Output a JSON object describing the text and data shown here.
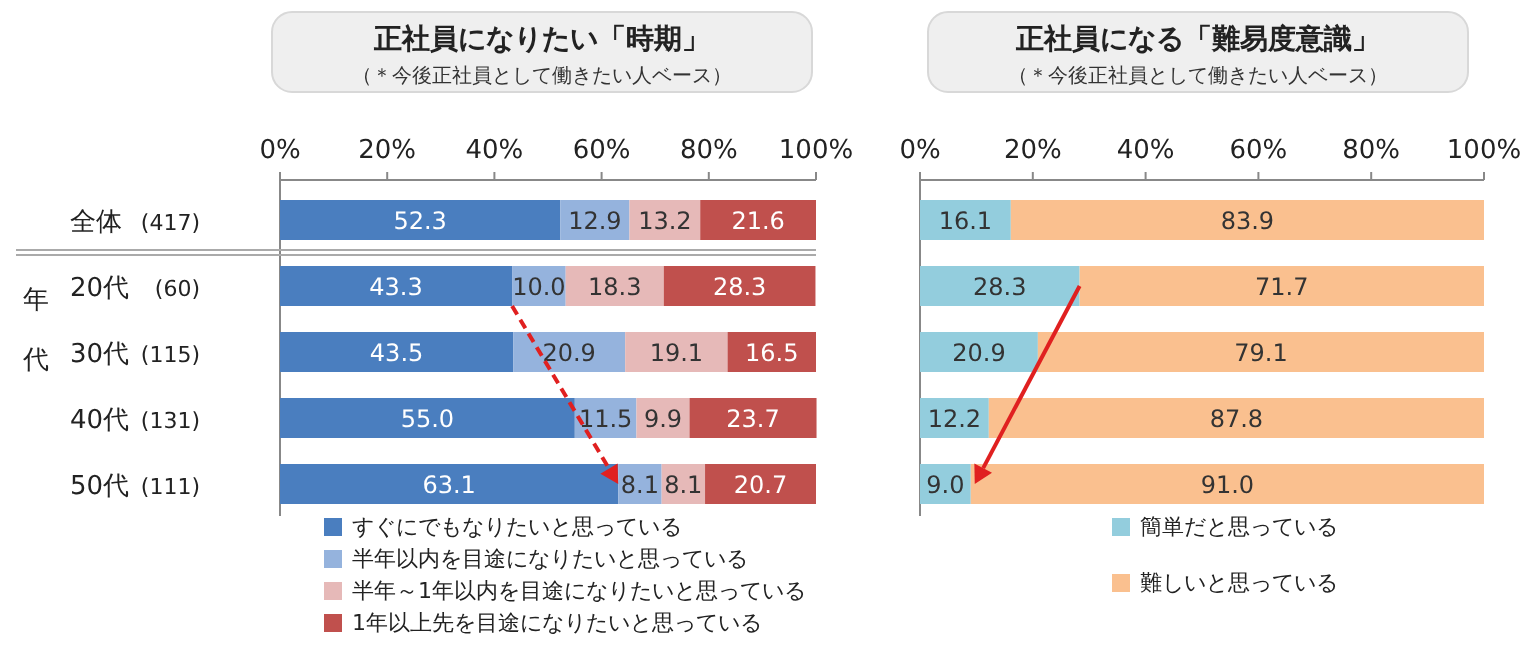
{
  "chart_data": [
    {
      "type": "bar",
      "orientation": "horizontal",
      "stacked": true,
      "title": "正社員になりたい「時期」",
      "subtitle": "（＊今後正社員として働きたい人ベース）",
      "categories": [
        "全体",
        "20代",
        "30代",
        "40代",
        "50代"
      ],
      "series": [
        {
          "name": "すぐにでもなりたいと思っている",
          "color": "#4a7ebf",
          "values": [
            52.3,
            43.3,
            43.5,
            55.0,
            63.1
          ],
          "value_labels": [
            "52.3",
            "43.3",
            "43.5",
            "55.0",
            "63.1"
          ]
        },
        {
          "name": "半年以内を目途になりたいと思っている",
          "color": "#95b3dd",
          "values": [
            12.9,
            10.0,
            20.9,
            11.5,
            8.1
          ],
          "value_labels": [
            "12.9",
            "10.0",
            "20.9",
            "11.5",
            "8.1"
          ]
        },
        {
          "name": "半年～1年以内を目途になりたいと思っている",
          "color": "#e6b9b8",
          "values": [
            13.2,
            18.3,
            19.1,
            9.9,
            8.1
          ],
          "value_labels": [
            "13.2",
            "18.3",
            "19.1",
            "9.9",
            "8.1"
          ]
        },
        {
          "name": "1年以上先を目途になりたいと思っている",
          "color": "#c0504d",
          "values": [
            21.6,
            28.3,
            16.5,
            23.7,
            20.7
          ],
          "value_labels": [
            "21.6",
            "28.3",
            "16.5",
            "23.7",
            "20.7"
          ]
        }
      ],
      "xlim": [
        0,
        100
      ],
      "xticks": [
        {
          "value": 0,
          "label": "0%"
        },
        {
          "value": 20,
          "label": "20%"
        },
        {
          "value": 40,
          "label": "40%"
        },
        {
          "value": 60,
          "label": "60%"
        },
        {
          "value": 80,
          "label": "80%"
        },
        {
          "value": 100,
          "label": "100%"
        }
      ],
      "legend": "bottom left",
      "annotations": [
        "(417)",
        "(60)",
        "(115)",
        "(131)",
        "(111)",
        "年代"
      ]
    },
    {
      "type": "bar",
      "orientation": "horizontal",
      "stacked": true,
      "title": "正社員になる「難易度意識」",
      "subtitle": "（＊今後正社員として働きたい人ベース）",
      "categories": [
        null,
        null,
        null,
        null,
        null
      ],
      "series": [
        {
          "name": "簡単だと思っている",
          "color": "#93cddd",
          "values": [
            16.1,
            28.3,
            20.9,
            12.2,
            9.0
          ],
          "value_labels": [
            "16.1",
            "28.3",
            "20.9",
            "12.2",
            "9.0"
          ]
        },
        {
          "name": "難しいと思っている",
          "color": "#fac08f",
          "values": [
            83.9,
            71.7,
            79.1,
            87.8,
            91.0
          ],
          "value_labels": [
            "83.9",
            "71.7",
            "79.1",
            "87.8",
            "91.0"
          ]
        }
      ],
      "xlim": [
        0,
        100
      ],
      "xticks": [
        {
          "value": 0,
          "label": "0%"
        },
        {
          "value": 20,
          "label": "20%"
        },
        {
          "value": 40,
          "label": "40%"
        },
        {
          "value": 60,
          "label": "60%"
        },
        {
          "value": 80,
          "label": "80%"
        },
        {
          "value": 100,
          "label": "100%"
        }
      ],
      "legend": "bottom",
      "tick_labels": "x"
    }
  ]
}
